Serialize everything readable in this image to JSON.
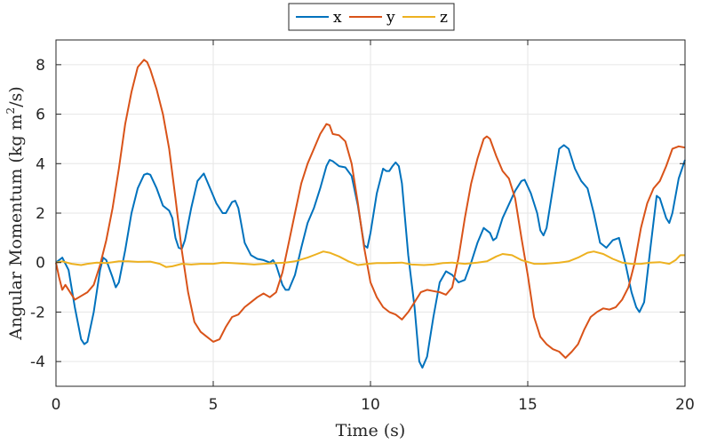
{
  "chart_data": {
    "type": "line",
    "xlabel": "Time (s)",
    "ylabel_main": "Angular Momentum (kg m",
    "ylabel_sup": "2",
    "ylabel_tail": "/s)",
    "xlim": [
      0,
      20
    ],
    "ylim": [
      -5,
      9
    ],
    "xticks": [
      0,
      5,
      10,
      15,
      20
    ],
    "yticks": [
      -4,
      -2,
      0,
      2,
      4,
      6,
      8
    ],
    "grid": true,
    "legend_position": "top-center",
    "series": [
      {
        "name": "x",
        "color": "#0072bd",
        "points": [
          [
            0,
            0
          ],
          [
            0.2,
            0.2
          ],
          [
            0.4,
            -0.3
          ],
          [
            0.6,
            -1.8
          ],
          [
            0.8,
            -3.1
          ],
          [
            0.9,
            -3.3
          ],
          [
            1.0,
            -3.2
          ],
          [
            1.2,
            -2.0
          ],
          [
            1.4,
            -0.3
          ],
          [
            1.5,
            0.2
          ],
          [
            1.6,
            0.1
          ],
          [
            1.8,
            -0.6
          ],
          [
            1.9,
            -1.0
          ],
          [
            2.0,
            -0.8
          ],
          [
            2.2,
            0.5
          ],
          [
            2.4,
            2.0
          ],
          [
            2.6,
            3.0
          ],
          [
            2.8,
            3.55
          ],
          [
            2.9,
            3.6
          ],
          [
            3.0,
            3.55
          ],
          [
            3.2,
            3.0
          ],
          [
            3.4,
            2.3
          ],
          [
            3.6,
            2.1
          ],
          [
            3.7,
            1.8
          ],
          [
            3.8,
            1.0
          ],
          [
            3.9,
            0.6
          ],
          [
            4.0,
            0.55
          ],
          [
            4.1,
            0.9
          ],
          [
            4.3,
            2.2
          ],
          [
            4.5,
            3.3
          ],
          [
            4.7,
            3.6
          ],
          [
            4.9,
            3.0
          ],
          [
            5.1,
            2.4
          ],
          [
            5.3,
            2.0
          ],
          [
            5.4,
            2.0
          ],
          [
            5.6,
            2.45
          ],
          [
            5.7,
            2.5
          ],
          [
            5.8,
            2.2
          ],
          [
            6.0,
            0.8
          ],
          [
            6.2,
            0.3
          ],
          [
            6.4,
            0.15
          ],
          [
            6.6,
            0.1
          ],
          [
            6.8,
            0.0
          ],
          [
            6.9,
            0.1
          ],
          [
            7.0,
            -0.1
          ],
          [
            7.2,
            -0.9
          ],
          [
            7.3,
            -1.1
          ],
          [
            7.4,
            -1.1
          ],
          [
            7.6,
            -0.5
          ],
          [
            7.8,
            0.6
          ],
          [
            8.0,
            1.6
          ],
          [
            8.2,
            2.2
          ],
          [
            8.4,
            3.0
          ],
          [
            8.6,
            3.9
          ],
          [
            8.7,
            4.15
          ],
          [
            8.8,
            4.1
          ],
          [
            9.0,
            3.9
          ],
          [
            9.2,
            3.85
          ],
          [
            9.4,
            3.5
          ],
          [
            9.6,
            2.3
          ],
          [
            9.8,
            0.7
          ],
          [
            9.9,
            0.6
          ],
          [
            10.0,
            1.2
          ],
          [
            10.2,
            2.8
          ],
          [
            10.4,
            3.8
          ],
          [
            10.5,
            3.7
          ],
          [
            10.6,
            3.7
          ],
          [
            10.7,
            3.9
          ],
          [
            10.8,
            4.05
          ],
          [
            10.9,
            3.9
          ],
          [
            11.0,
            3.2
          ],
          [
            11.2,
            0.3
          ],
          [
            11.4,
            -1.8
          ],
          [
            11.55,
            -4.0
          ],
          [
            11.65,
            -4.25
          ],
          [
            11.8,
            -3.8
          ],
          [
            12.0,
            -2.2
          ],
          [
            12.2,
            -0.8
          ],
          [
            12.4,
            -0.35
          ],
          [
            12.6,
            -0.5
          ],
          [
            12.8,
            -0.8
          ],
          [
            13.0,
            -0.7
          ],
          [
            13.2,
            0.0
          ],
          [
            13.4,
            0.8
          ],
          [
            13.6,
            1.4
          ],
          [
            13.8,
            1.2
          ],
          [
            13.9,
            0.9
          ],
          [
            14.0,
            1.0
          ],
          [
            14.2,
            1.8
          ],
          [
            14.6,
            2.9
          ],
          [
            14.8,
            3.3
          ],
          [
            14.9,
            3.35
          ],
          [
            15.1,
            2.8
          ],
          [
            15.3,
            2.0
          ],
          [
            15.4,
            1.3
          ],
          [
            15.5,
            1.1
          ],
          [
            15.6,
            1.4
          ],
          [
            15.8,
            3.0
          ],
          [
            16.0,
            4.6
          ],
          [
            16.15,
            4.75
          ],
          [
            16.3,
            4.6
          ],
          [
            16.5,
            3.8
          ],
          [
            16.7,
            3.3
          ],
          [
            16.9,
            3.0
          ],
          [
            17.1,
            2.0
          ],
          [
            17.3,
            0.8
          ],
          [
            17.5,
            0.6
          ],
          [
            17.7,
            0.9
          ],
          [
            17.9,
            1.0
          ],
          [
            18.1,
            0.0
          ],
          [
            18.3,
            -1.2
          ],
          [
            18.45,
            -1.8
          ],
          [
            18.55,
            -2.0
          ],
          [
            18.7,
            -1.6
          ],
          [
            18.9,
            0.6
          ],
          [
            19.1,
            2.7
          ],
          [
            19.2,
            2.6
          ],
          [
            19.4,
            1.8
          ],
          [
            19.5,
            1.6
          ],
          [
            19.6,
            2.0
          ],
          [
            19.8,
            3.4
          ],
          [
            20.0,
            4.15
          ]
        ]
      },
      {
        "name": "y",
        "color": "#d95319",
        "points": [
          [
            0,
            0
          ],
          [
            0.1,
            -0.6
          ],
          [
            0.2,
            -1.1
          ],
          [
            0.3,
            -0.9
          ],
          [
            0.4,
            -1.1
          ],
          [
            0.6,
            -1.5
          ],
          [
            0.8,
            -1.35
          ],
          [
            1.0,
            -1.2
          ],
          [
            1.2,
            -0.9
          ],
          [
            1.4,
            -0.1
          ],
          [
            1.6,
            0.9
          ],
          [
            1.8,
            2.2
          ],
          [
            2.0,
            3.8
          ],
          [
            2.2,
            5.6
          ],
          [
            2.4,
            6.9
          ],
          [
            2.6,
            7.9
          ],
          [
            2.8,
            8.2
          ],
          [
            2.9,
            8.1
          ],
          [
            3.0,
            7.8
          ],
          [
            3.2,
            7.0
          ],
          [
            3.4,
            6.0
          ],
          [
            3.6,
            4.6
          ],
          [
            3.8,
            2.6
          ],
          [
            4.0,
            0.5
          ],
          [
            4.2,
            -1.2
          ],
          [
            4.4,
            -2.4
          ],
          [
            4.6,
            -2.8
          ],
          [
            4.8,
            -3.0
          ],
          [
            5.0,
            -3.2
          ],
          [
            5.2,
            -3.1
          ],
          [
            5.4,
            -2.6
          ],
          [
            5.6,
            -2.2
          ],
          [
            5.8,
            -2.1
          ],
          [
            6.0,
            -1.8
          ],
          [
            6.2,
            -1.6
          ],
          [
            6.4,
            -1.4
          ],
          [
            6.6,
            -1.25
          ],
          [
            6.8,
            -1.4
          ],
          [
            7.0,
            -1.2
          ],
          [
            7.2,
            -0.4
          ],
          [
            7.4,
            0.8
          ],
          [
            7.6,
            2.0
          ],
          [
            7.8,
            3.2
          ],
          [
            8.0,
            4.0
          ],
          [
            8.2,
            4.6
          ],
          [
            8.4,
            5.2
          ],
          [
            8.6,
            5.6
          ],
          [
            8.7,
            5.55
          ],
          [
            8.8,
            5.2
          ],
          [
            9.0,
            5.15
          ],
          [
            9.2,
            4.9
          ],
          [
            9.4,
            4.0
          ],
          [
            9.6,
            2.4
          ],
          [
            9.8,
            0.6
          ],
          [
            10.0,
            -0.8
          ],
          [
            10.2,
            -1.4
          ],
          [
            10.4,
            -1.8
          ],
          [
            10.6,
            -2.0
          ],
          [
            10.8,
            -2.1
          ],
          [
            11.0,
            -2.3
          ],
          [
            11.2,
            -2.0
          ],
          [
            11.4,
            -1.6
          ],
          [
            11.6,
            -1.2
          ],
          [
            11.8,
            -1.1
          ],
          [
            12.0,
            -1.15
          ],
          [
            12.2,
            -1.2
          ],
          [
            12.4,
            -1.3
          ],
          [
            12.6,
            -1.0
          ],
          [
            12.8,
            0.2
          ],
          [
            13.0,
            1.8
          ],
          [
            13.2,
            3.2
          ],
          [
            13.4,
            4.2
          ],
          [
            13.6,
            5.0
          ],
          [
            13.7,
            5.1
          ],
          [
            13.8,
            5.0
          ],
          [
            14.0,
            4.3
          ],
          [
            14.2,
            3.7
          ],
          [
            14.4,
            3.4
          ],
          [
            14.6,
            2.6
          ],
          [
            14.8,
            1.0
          ],
          [
            15.0,
            -0.5
          ],
          [
            15.2,
            -2.2
          ],
          [
            15.4,
            -3.0
          ],
          [
            15.6,
            -3.3
          ],
          [
            15.8,
            -3.5
          ],
          [
            16.0,
            -3.6
          ],
          [
            16.2,
            -3.85
          ],
          [
            16.4,
            -3.6
          ],
          [
            16.6,
            -3.3
          ],
          [
            16.8,
            -2.7
          ],
          [
            17.0,
            -2.2
          ],
          [
            17.2,
            -2.0
          ],
          [
            17.4,
            -1.85
          ],
          [
            17.6,
            -1.9
          ],
          [
            17.8,
            -1.8
          ],
          [
            18.0,
            -1.5
          ],
          [
            18.2,
            -1.0
          ],
          [
            18.4,
            0.0
          ],
          [
            18.6,
            1.4
          ],
          [
            18.8,
            2.4
          ],
          [
            19.0,
            3.0
          ],
          [
            19.2,
            3.3
          ],
          [
            19.4,
            3.9
          ],
          [
            19.6,
            4.6
          ],
          [
            19.8,
            4.7
          ],
          [
            20.0,
            4.65
          ]
        ]
      },
      {
        "name": "z",
        "color": "#edb120",
        "points": [
          [
            0,
            0
          ],
          [
            0.2,
            0.05
          ],
          [
            0.5,
            -0.05
          ],
          [
            0.8,
            -0.1
          ],
          [
            1.0,
            -0.05
          ],
          [
            1.3,
            0.0
          ],
          [
            1.6,
            -0.02
          ],
          [
            2.0,
            0.05
          ],
          [
            2.3,
            0.05
          ],
          [
            2.6,
            0.03
          ],
          [
            3.0,
            0.04
          ],
          [
            3.3,
            -0.05
          ],
          [
            3.5,
            -0.18
          ],
          [
            3.7,
            -0.15
          ],
          [
            4.0,
            -0.05
          ],
          [
            4.3,
            -0.08
          ],
          [
            4.6,
            -0.05
          ],
          [
            5.0,
            -0.05
          ],
          [
            5.3,
            0.0
          ],
          [
            5.6,
            -0.02
          ],
          [
            6.0,
            -0.05
          ],
          [
            6.3,
            -0.08
          ],
          [
            6.6,
            -0.05
          ],
          [
            7.0,
            -0.02
          ],
          [
            7.3,
            0.0
          ],
          [
            7.6,
            0.05
          ],
          [
            8.0,
            0.2
          ],
          [
            8.3,
            0.35
          ],
          [
            8.5,
            0.45
          ],
          [
            8.7,
            0.4
          ],
          [
            9.0,
            0.25
          ],
          [
            9.3,
            0.05
          ],
          [
            9.6,
            -0.1
          ],
          [
            9.9,
            -0.05
          ],
          [
            10.2,
            -0.02
          ],
          [
            10.5,
            -0.02
          ],
          [
            11.0,
            0.0
          ],
          [
            11.3,
            -0.08
          ],
          [
            11.7,
            -0.1
          ],
          [
            12.0,
            -0.08
          ],
          [
            12.3,
            -0.02
          ],
          [
            12.6,
            0.0
          ],
          [
            13.0,
            -0.05
          ],
          [
            13.4,
            0.0
          ],
          [
            13.7,
            0.05
          ],
          [
            14.0,
            0.25
          ],
          [
            14.2,
            0.35
          ],
          [
            14.5,
            0.3
          ],
          [
            14.8,
            0.1
          ],
          [
            15.2,
            -0.05
          ],
          [
            15.5,
            -0.05
          ],
          [
            16.0,
            0.0
          ],
          [
            16.3,
            0.05
          ],
          [
            16.6,
            0.2
          ],
          [
            16.9,
            0.4
          ],
          [
            17.1,
            0.45
          ],
          [
            17.4,
            0.35
          ],
          [
            17.7,
            0.15
          ],
          [
            18.0,
            0.0
          ],
          [
            18.3,
            -0.05
          ],
          [
            18.6,
            -0.05
          ],
          [
            18.9,
            0.0
          ],
          [
            19.2,
            0.02
          ],
          [
            19.5,
            -0.05
          ],
          [
            19.7,
            0.1
          ],
          [
            19.85,
            0.3
          ],
          [
            20.0,
            0.3
          ]
        ]
      }
    ]
  }
}
